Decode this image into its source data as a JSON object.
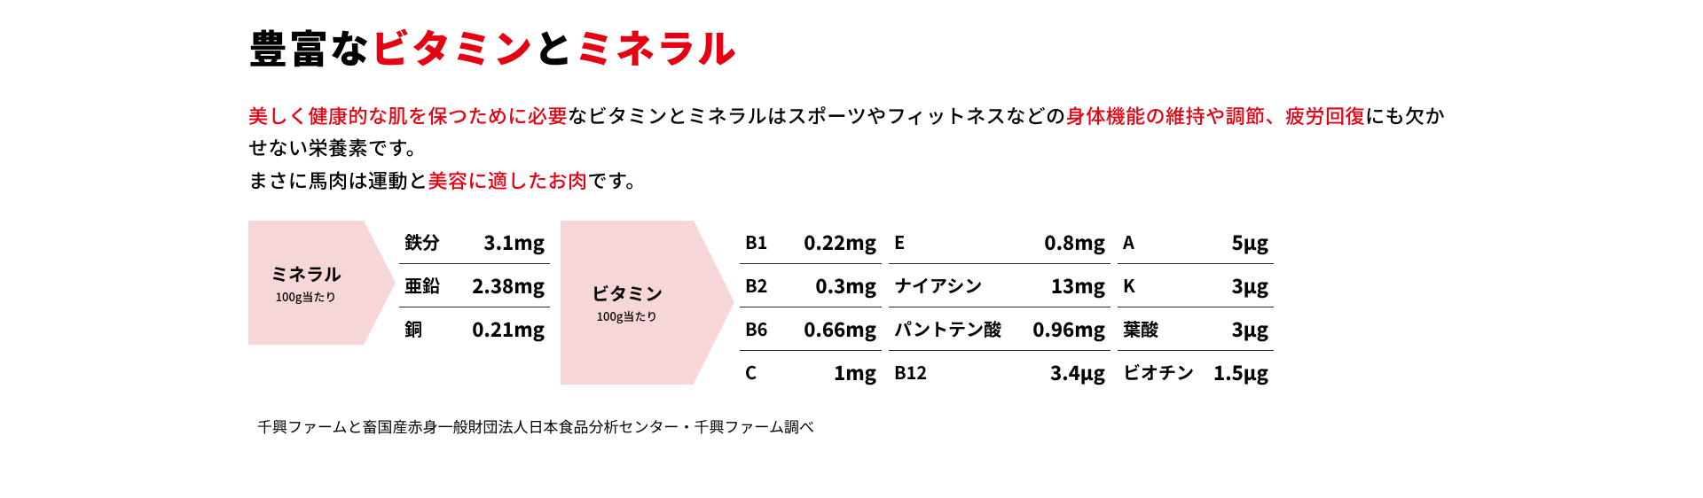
{
  "colors": {
    "accent_red": "#e60012",
    "box_fill": "#f6d6d6",
    "text": "#000000",
    "border": "#2b2b2b",
    "background": "#ffffff"
  },
  "title": {
    "part1": "豊富な",
    "part2_red": "ビタミン",
    "part3": "と",
    "part4_red": "ミネラル",
    "fontsize": 44
  },
  "description": {
    "seg1_red": "美しく健康的な肌を保つために必要",
    "seg2": "なビタミンとミネラルはスポーツやフィットネスなどの",
    "seg3_red": "身体機能の維持や調節、疲労回復",
    "seg4": "にも欠かせない栄養素です。",
    "line2a": "まさに馬肉は運動と",
    "line2b_red": "美容に適したお肉",
    "line2c": "です。",
    "fontsize": 22
  },
  "mineral_box": {
    "title": "ミネラル",
    "subtitle": "100g当たり"
  },
  "mineral_rows": [
    {
      "label": "鉄分",
      "value": "3.1mg"
    },
    {
      "label": "亜鉛",
      "value": "2.38mg"
    },
    {
      "label": "銅",
      "value": "0.21mg"
    }
  ],
  "vitamin_box": {
    "title": "ビタミン",
    "subtitle": "100g当たり"
  },
  "vitamin_col1": [
    {
      "label": "B1",
      "value": "0.22mg"
    },
    {
      "label": "B2",
      "value": "0.3mg"
    },
    {
      "label": "B6",
      "value": "0.66mg"
    },
    {
      "label": "C",
      "value": "1mg"
    }
  ],
  "vitamin_col2": [
    {
      "label": "E",
      "value": "0.8mg"
    },
    {
      "label": "ナイアシン",
      "value": "13mg"
    },
    {
      "label": "パントテン酸",
      "value": "0.96mg"
    },
    {
      "label": "B12",
      "value": "3.4µg"
    }
  ],
  "vitamin_col3": [
    {
      "label": "A",
      "value": "5µg"
    },
    {
      "label": "K",
      "value": "3µg"
    },
    {
      "label": "葉酸",
      "value": "3µg"
    },
    {
      "label": "ビオチン",
      "value": "1.5µg"
    }
  ],
  "footnote": "千興ファームと畜国産赤身一般財団法人日本食品分析センター・千興ファーム調べ"
}
